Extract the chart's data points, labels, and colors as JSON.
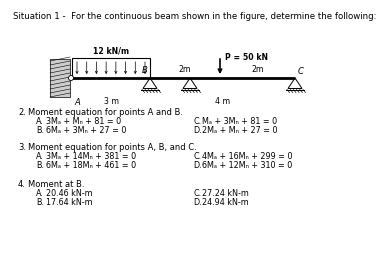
{
  "title": "Situation 1 -  For the continuous beam shown in the figure, determine the following:",
  "background_color": "#ffffff",
  "beam": {
    "load_label": "12 kN/m",
    "point_load_label": "P = 50 kN",
    "span1": "3 m",
    "span2": "4 m",
    "dim_B_to_mid": "2m",
    "dim_mid_to_C": "2m",
    "label_A": "A",
    "label_B": "B",
    "label_C": "C"
  },
  "questions": [
    {
      "num": "2.",
      "text": "Moment equation for points A and B.",
      "options": [
        {
          "letter": "A.",
          "text": "3Mₐ + Mₙ + 81 = 0"
        },
        {
          "letter": "B.",
          "text": "6Mₐ + 3Mₙ + 27 = 0"
        },
        {
          "letter": "C.",
          "text": "Mₐ + 3Mₙ + 81 = 0"
        },
        {
          "letter": "D.",
          "text": "2Mₐ + Mₙ + 27 = 0"
        }
      ]
    },
    {
      "num": "3.",
      "text": "Moment equation for points A, B, and C.",
      "options": [
        {
          "letter": "A.",
          "text": "3Mₐ + 14Mₙ + 381 = 0"
        },
        {
          "letter": "B.",
          "text": "6Mₐ + 18Mₙ + 461 = 0"
        },
        {
          "letter": "C.",
          "text": "4Mₐ + 16Mₙ + 299 = 0"
        },
        {
          "letter": "D.",
          "text": "6Mₐ + 12Mₙ + 310 = 0"
        }
      ]
    },
    {
      "num": "4.",
      "text": "Moment at B.",
      "options": [
        {
          "letter": "A.",
          "text": "20.46 kN-m"
        },
        {
          "letter": "B.",
          "text": "17.64 kN-m"
        },
        {
          "letter": "C.",
          "text": "27.24 kN-m"
        },
        {
          "letter": "D.",
          "text": "24.94 kN-m"
        }
      ]
    }
  ]
}
